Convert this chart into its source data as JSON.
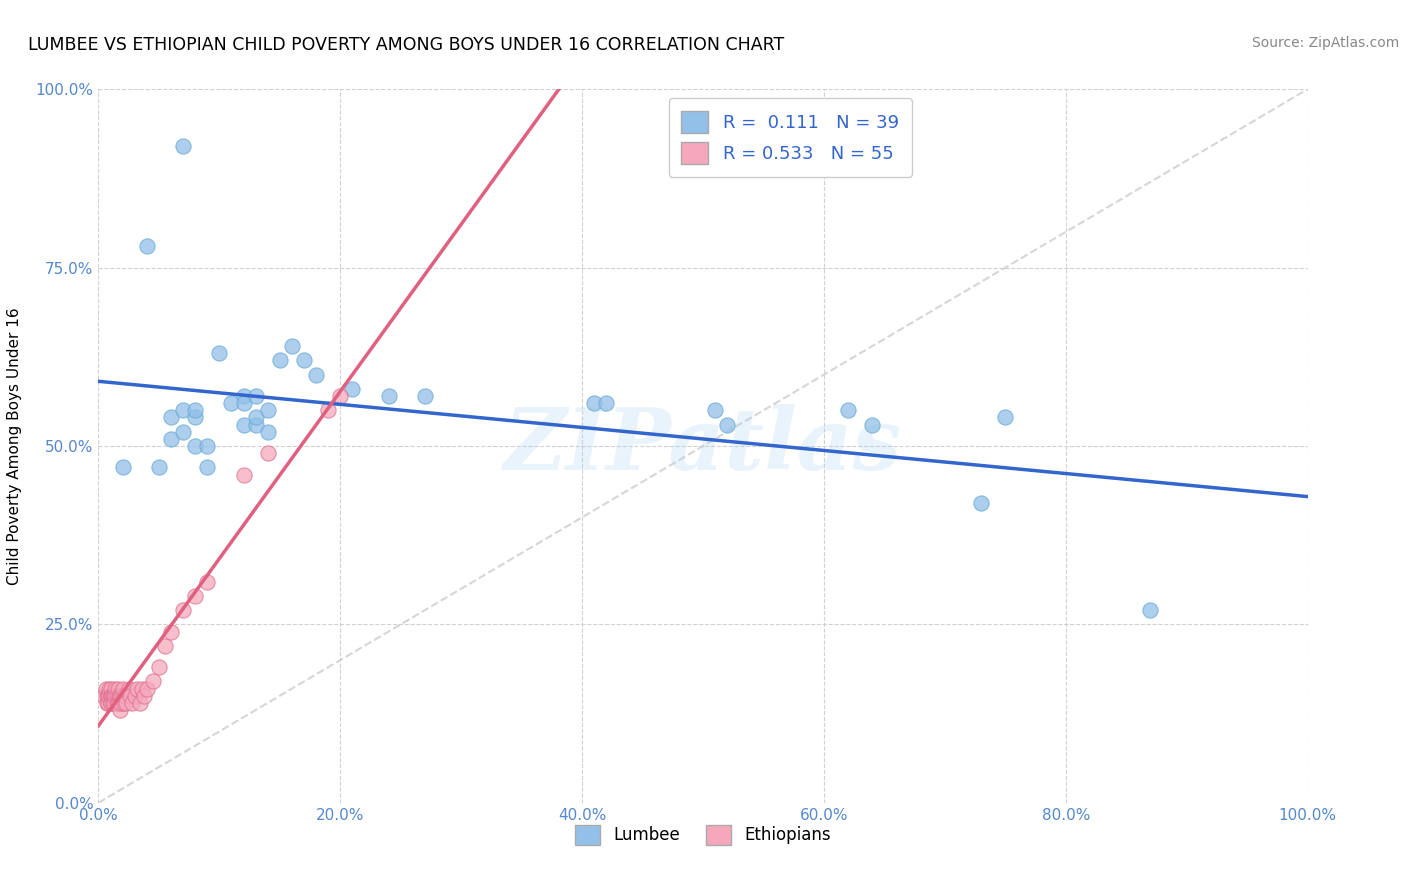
{
  "title": "LUMBEE VS ETHIOPIAN CHILD POVERTY AMONG BOYS UNDER 16 CORRELATION CHART",
  "source": "Source: ZipAtlas.com",
  "ylabel": "Child Poverty Among Boys Under 16",
  "watermark": "ZIPatlas",
  "xlim": [
    0,
    1.0
  ],
  "ylim": [
    0,
    1.0
  ],
  "xtick_positions": [
    0.0,
    0.2,
    0.4,
    0.6,
    0.8,
    1.0
  ],
  "ytick_positions": [
    0.0,
    0.25,
    0.5,
    0.75,
    1.0
  ],
  "xtick_labels": [
    "0.0%",
    "20.0%",
    "40.0%",
    "60.0%",
    "80.0%",
    "100.0%"
  ],
  "ytick_labels": [
    "0.0%",
    "25.0%",
    "50.0%",
    "75.0%",
    "100.0%"
  ],
  "lumbee_color": "#92c0e8",
  "lumbee_edge": "#6aaad4",
  "ethiopian_color": "#f5a8bc",
  "ethiopian_edge": "#e07090",
  "lumbee_line_color": "#3366cc",
  "ethiopian_line_color": "#e06080",
  "diagonal_color": "#cccccc",
  "background_color": "#ffffff",
  "grid_color": "#cccccc",
  "tick_color": "#5588cc",
  "legend_r_color": "#3366cc",
  "legend_n_color": "#cc3333",
  "lumbee_x": [
    0.02,
    0.05,
    0.06,
    0.06,
    0.07,
    0.07,
    0.08,
    0.08,
    0.08,
    0.09,
    0.09,
    0.1,
    0.11,
    0.12,
    0.12,
    0.12,
    0.13,
    0.13,
    0.13,
    0.14,
    0.14,
    0.15,
    0.16,
    0.17,
    0.18,
    0.21,
    0.24,
    0.27,
    0.41,
    0.42,
    0.51,
    0.52,
    0.62,
    0.64,
    0.73,
    0.75,
    0.87,
    0.04,
    0.07
  ],
  "lumbee_y": [
    0.47,
    0.47,
    0.51,
    0.54,
    0.52,
    0.55,
    0.54,
    0.55,
    0.5,
    0.5,
    0.47,
    0.63,
    0.56,
    0.57,
    0.56,
    0.53,
    0.53,
    0.57,
    0.54,
    0.55,
    0.52,
    0.62,
    0.64,
    0.62,
    0.6,
    0.58,
    0.57,
    0.57,
    0.56,
    0.56,
    0.55,
    0.53,
    0.55,
    0.53,
    0.42,
    0.54,
    0.27,
    0.78,
    0.92
  ],
  "ethiopian_x": [
    0.005,
    0.006,
    0.007,
    0.007,
    0.008,
    0.008,
    0.009,
    0.009,
    0.01,
    0.01,
    0.01,
    0.01,
    0.01,
    0.011,
    0.012,
    0.012,
    0.013,
    0.013,
    0.014,
    0.014,
    0.015,
    0.015,
    0.016,
    0.016,
    0.017,
    0.017,
    0.018,
    0.018,
    0.019,
    0.019,
    0.02,
    0.02,
    0.021,
    0.022,
    0.023,
    0.025,
    0.026,
    0.028,
    0.03,
    0.032,
    0.034,
    0.036,
    0.038,
    0.04,
    0.045,
    0.05,
    0.055,
    0.06,
    0.07,
    0.08,
    0.09,
    0.12,
    0.14,
    0.19,
    0.2
  ],
  "ethiopian_y": [
    0.15,
    0.16,
    0.14,
    0.15,
    0.15,
    0.14,
    0.15,
    0.16,
    0.15,
    0.14,
    0.16,
    0.15,
    0.14,
    0.15,
    0.15,
    0.14,
    0.15,
    0.14,
    0.16,
    0.15,
    0.15,
    0.14,
    0.14,
    0.16,
    0.15,
    0.14,
    0.15,
    0.13,
    0.15,
    0.14,
    0.15,
    0.16,
    0.14,
    0.15,
    0.14,
    0.16,
    0.15,
    0.14,
    0.15,
    0.16,
    0.14,
    0.16,
    0.15,
    0.16,
    0.17,
    0.19,
    0.22,
    0.24,
    0.27,
    0.29,
    0.31,
    0.46,
    0.49,
    0.55,
    0.57
  ],
  "legend1_text": "R =  0.111   N = 39",
  "legend2_text": "R = 0.533   N = 55",
  "bot_legend1": "Lumbee",
  "bot_legend2": "Ethiopians"
}
